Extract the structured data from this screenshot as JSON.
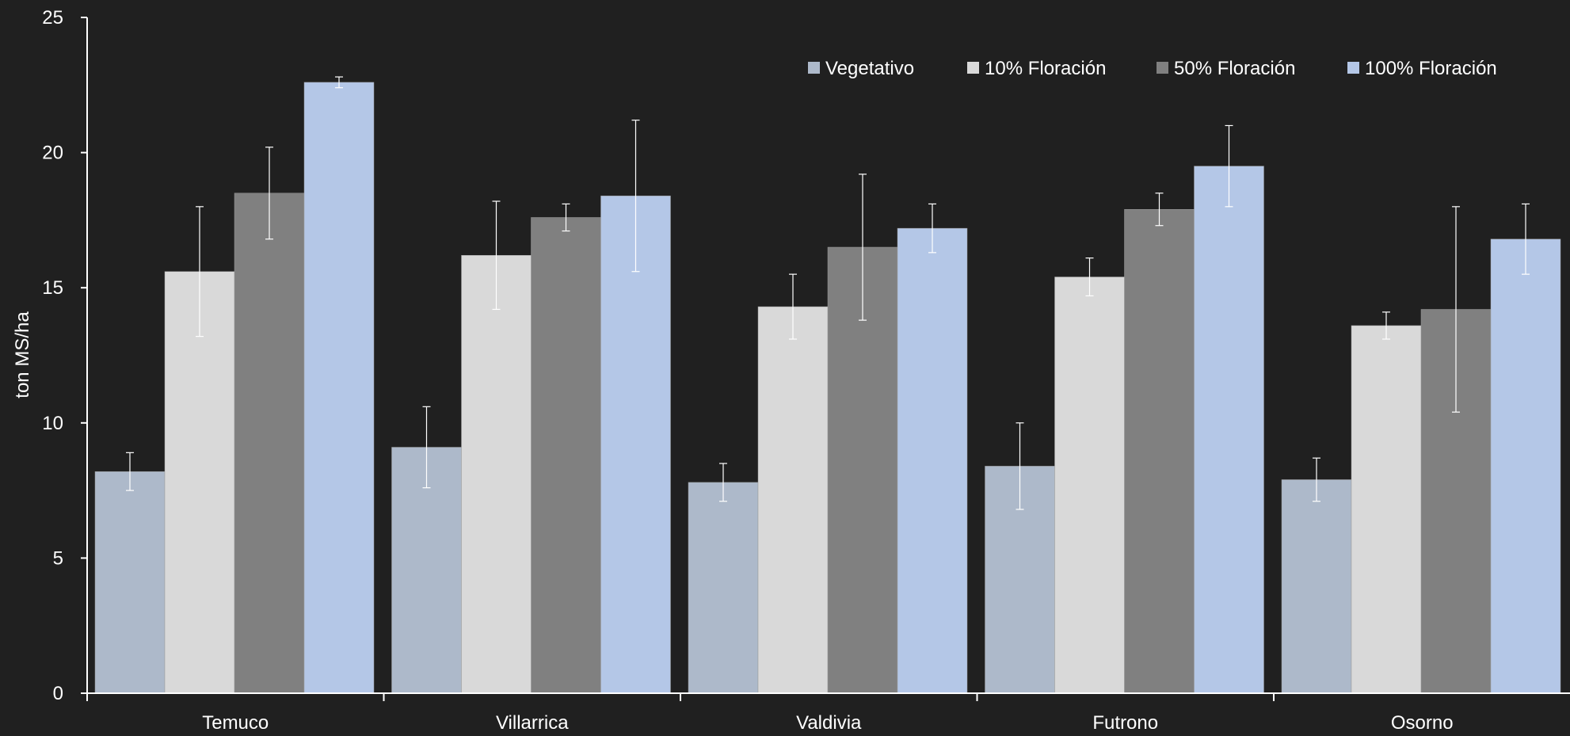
{
  "chart_data": {
    "type": "bar",
    "title": "",
    "xlabel": "",
    "ylabel": "ton MS/ha",
    "ylim": [
      0,
      25
    ],
    "yticks": [
      0,
      5,
      10,
      15,
      20,
      25
    ],
    "categories": [
      "Temuco",
      "Villarrica",
      "Valdivia",
      "Futrono",
      "Osorno"
    ],
    "series": [
      {
        "name": "Vegetativo",
        "color": "#adb9ca",
        "values": [
          8.2,
          9.1,
          7.8,
          8.4,
          7.9
        ],
        "error_low": [
          7.5,
          7.6,
          7.1,
          6.8,
          7.1
        ],
        "error_high": [
          8.9,
          10.6,
          8.5,
          10.0,
          8.7
        ]
      },
      {
        "name": "10% Floración",
        "color": "#d9d9d9",
        "values": [
          15.6,
          16.2,
          14.3,
          15.4,
          13.6
        ],
        "error_low": [
          13.2,
          14.2,
          13.1,
          14.7,
          13.1
        ],
        "error_high": [
          18.0,
          18.2,
          15.5,
          16.1,
          14.1
        ]
      },
      {
        "name": "50% Floración",
        "color": "#808080",
        "values": [
          18.5,
          17.6,
          16.5,
          17.9,
          14.2
        ],
        "error_low": [
          16.8,
          17.1,
          13.8,
          17.3,
          10.4
        ],
        "error_high": [
          20.2,
          18.1,
          19.2,
          18.5,
          18.0
        ]
      },
      {
        "name": "100% Floración",
        "color": "#b4c7e7",
        "values": [
          22.6,
          18.4,
          17.2,
          19.5,
          16.8
        ],
        "error_low": [
          22.4,
          15.6,
          16.3,
          18.0,
          15.5
        ],
        "error_high": [
          22.8,
          21.2,
          18.1,
          21.0,
          18.1
        ]
      }
    ],
    "legend_position": "top-right",
    "grid": false
  }
}
